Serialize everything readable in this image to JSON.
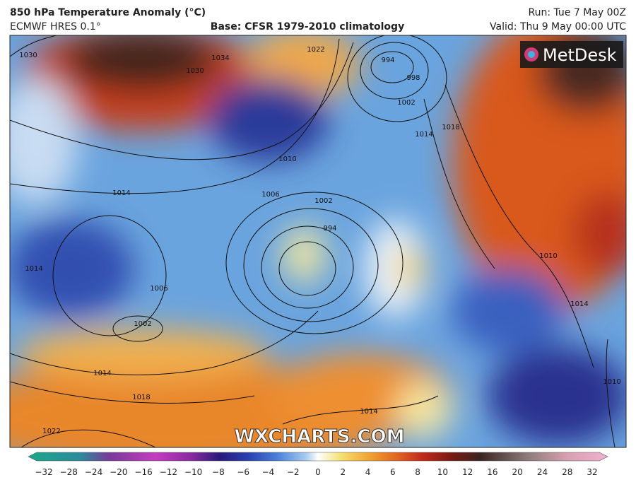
{
  "header": {
    "title": "850 hPa Temperature Anomaly (°C)",
    "model": "ECMWF HRES 0.1°",
    "base": "Base: CFSR 1979-2010 climatology",
    "run": "Run: Tue 7 May 00Z",
    "valid": "Valid: Thu 9 May 00:00 UTC"
  },
  "map": {
    "logo": "MetDesk",
    "watermark": "WXCHARTS.COM",
    "isobar_labels": [
      "1030",
      "1034",
      "1030",
      "1022",
      "994",
      "998",
      "1002",
      "1014",
      "1010",
      "1006",
      "1002",
      "994",
      "1014",
      "1006",
      "1002",
      "1014",
      "1018",
      "1022",
      "1014",
      "1010",
      "1014",
      "1010",
      "1018",
      "1014"
    ]
  },
  "colorbar": {
    "ticks": [
      "−32",
      "−28",
      "−24",
      "−20",
      "−16",
      "−12",
      "−10",
      "−8",
      "−6",
      "−4",
      "−2",
      "0",
      "2",
      "4",
      "6",
      "8",
      "10",
      "12",
      "16",
      "20",
      "24",
      "28",
      "32"
    ]
  }
}
